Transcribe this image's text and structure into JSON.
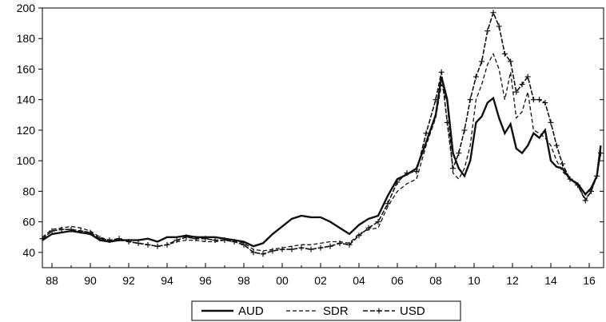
{
  "chart_data": {
    "type": "line",
    "title": "",
    "xlabel": "",
    "ylabel": "",
    "xlim": [
      1987.5,
      2016.75
    ],
    "ylim": [
      30,
      200
    ],
    "grid": false,
    "legend_position": "bottom-center",
    "y_ticks": [
      40,
      60,
      80,
      100,
      120,
      140,
      160,
      180,
      200
    ],
    "x_ticks": [
      {
        "value": 1988,
        "label": "88"
      },
      {
        "value": 1990,
        "label": "90"
      },
      {
        "value": 1992,
        "label": "92"
      },
      {
        "value": 1994,
        "label": "94"
      },
      {
        "value": 1996,
        "label": "96"
      },
      {
        "value": 1998,
        "label": "98"
      },
      {
        "value": 2000,
        "label": "00"
      },
      {
        "value": 2002,
        "label": "02"
      },
      {
        "value": 2004,
        "label": "04"
      },
      {
        "value": 2006,
        "label": "06"
      },
      {
        "value": 2008,
        "label": "08"
      },
      {
        "value": 2010,
        "label": "10"
      },
      {
        "value": 2012,
        "label": "12"
      },
      {
        "value": 2014,
        "label": "14"
      },
      {
        "value": 2016,
        "label": "16"
      }
    ],
    "series": [
      {
        "name": "AUD",
        "style": "solid",
        "color": "#111111",
        "x": [
          1987.5,
          1988.0,
          1988.5,
          1989.0,
          1989.5,
          1990.0,
          1990.5,
          1991.0,
          1991.5,
          1992.0,
          1992.5,
          1993.0,
          1993.5,
          1994.0,
          1994.5,
          1995.0,
          1995.5,
          1996.0,
          1996.5,
          1997.0,
          1997.5,
          1998.0,
          1998.5,
          1999.0,
          1999.5,
          2000.0,
          2000.5,
          2001.0,
          2001.5,
          2002.0,
          2002.5,
          2003.0,
          2003.5,
          2004.0,
          2004.5,
          2005.0,
          2005.5,
          2006.0,
          2006.5,
          2007.0,
          2007.5,
          2008.0,
          2008.3,
          2008.6,
          2008.9,
          2009.2,
          2009.5,
          2009.8,
          2010.1,
          2010.4,
          2010.7,
          2011.0,
          2011.3,
          2011.6,
          2011.9,
          2012.2,
          2012.5,
          2012.8,
          2013.1,
          2013.4,
          2013.7,
          2014.0,
          2014.3,
          2014.6,
          2015.0,
          2015.4,
          2015.8,
          2016.1,
          2016.4,
          2016.6
        ],
        "values": [
          48,
          52,
          53,
          54,
          53,
          52,
          48,
          47,
          48,
          48,
          48,
          49,
          47,
          50,
          50,
          51,
          50,
          50,
          50,
          49,
          48,
          47,
          44,
          46,
          52,
          57,
          62,
          64,
          63,
          63,
          60,
          56,
          52,
          58,
          62,
          64,
          77,
          88,
          91,
          95,
          112,
          130,
          155,
          140,
          105,
          95,
          90,
          100,
          125,
          129,
          138,
          141,
          128,
          118,
          124,
          108,
          105,
          110,
          118,
          115,
          120,
          100,
          96,
          95,
          88,
          85,
          78,
          82,
          90,
          110
        ]
      },
      {
        "name": "SDR",
        "style": "dashed",
        "color": "#111111",
        "x": [
          1987.5,
          1988.0,
          1988.5,
          1989.0,
          1989.5,
          1990.0,
          1990.5,
          1991.0,
          1991.5,
          1992.0,
          1992.5,
          1993.0,
          1993.5,
          1994.0,
          1994.5,
          1995.0,
          1995.5,
          1996.0,
          1996.5,
          1997.0,
          1997.5,
          1998.0,
          1998.5,
          1999.0,
          1999.5,
          2000.0,
          2000.5,
          2001.0,
          2001.5,
          2002.0,
          2002.5,
          2003.0,
          2003.5,
          2004.0,
          2004.5,
          2005.0,
          2005.5,
          2006.0,
          2006.5,
          2007.0,
          2007.5,
          2008.0,
          2008.3,
          2008.6,
          2008.9,
          2009.2,
          2009.5,
          2009.8,
          2010.1,
          2010.4,
          2010.7,
          2011.0,
          2011.3,
          2011.6,
          2011.9,
          2012.2,
          2012.5,
          2012.8,
          2013.1,
          2013.4,
          2013.7,
          2014.0,
          2014.3,
          2014.6,
          2015.0,
          2015.4,
          2015.8,
          2016.1,
          2016.4,
          2016.6
        ],
        "values": [
          50,
          55,
          56,
          57,
          56,
          54,
          50,
          48,
          48,
          47,
          46,
          45,
          44,
          45,
          47,
          48,
          48,
          47,
          47,
          48,
          48,
          46,
          42,
          41,
          42,
          43,
          44,
          45,
          45,
          46,
          47,
          47,
          46,
          52,
          55,
          56,
          70,
          80,
          85,
          88,
          110,
          128,
          150,
          138,
          92,
          88,
          95,
          110,
          140,
          150,
          163,
          170,
          160,
          140,
          158,
          128,
          132,
          145,
          120,
          118,
          115,
          110,
          100,
          93,
          88,
          84,
          75,
          80,
          90,
          108
        ]
      },
      {
        "name": "USD",
        "style": "dash-plus",
        "color": "#111111",
        "x": [
          1987.5,
          1988.0,
          1988.5,
          1989.0,
          1989.5,
          1990.0,
          1990.5,
          1991.0,
          1991.5,
          1992.0,
          1992.5,
          1993.0,
          1993.5,
          1994.0,
          1994.5,
          1995.0,
          1995.5,
          1996.0,
          1996.5,
          1997.0,
          1997.5,
          1998.0,
          1998.5,
          1999.0,
          1999.5,
          2000.0,
          2000.5,
          2001.0,
          2001.5,
          2002.0,
          2002.5,
          2003.0,
          2003.5,
          2004.0,
          2004.5,
          2005.0,
          2005.5,
          2006.0,
          2006.5,
          2007.0,
          2007.5,
          2008.0,
          2008.3,
          2008.6,
          2008.9,
          2009.2,
          2009.5,
          2009.8,
          2010.1,
          2010.4,
          2010.7,
          2011.0,
          2011.3,
          2011.6,
          2011.9,
          2012.2,
          2012.5,
          2012.8,
          2013.1,
          2013.4,
          2013.7,
          2014.0,
          2014.3,
          2014.6,
          2015.0,
          2015.4,
          2015.8,
          2016.1,
          2016.4,
          2016.6
        ],
        "values": [
          49,
          54,
          55,
          55,
          54,
          53,
          49,
          48,
          49,
          47,
          46,
          45,
          44,
          45,
          48,
          50,
          49,
          49,
          48,
          48,
          47,
          45,
          40,
          39,
          41,
          42,
          42,
          43,
          42,
          43,
          44,
          46,
          45,
          51,
          56,
          60,
          72,
          86,
          92,
          93,
          118,
          140,
          158,
          125,
          95,
          105,
          120,
          140,
          155,
          165,
          185,
          197,
          188,
          170,
          165,
          145,
          150,
          155,
          140,
          140,
          138,
          125,
          110,
          98,
          88,
          84,
          74,
          80,
          90,
          105
        ]
      }
    ]
  }
}
